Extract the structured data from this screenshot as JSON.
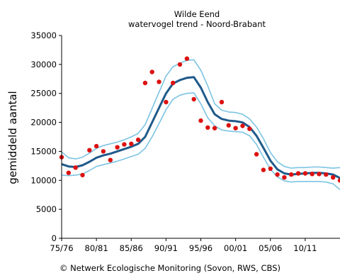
{
  "credit": "© Netwerk Ecologische Monitoring (Sovon, RWS, CBS)",
  "chart_data": {
    "type": "line",
    "title": "Wilde Eend",
    "subtitle": "watervogel trend - Noord-Brabant",
    "ylabel": "gemiddeld aantal",
    "xlabel": "",
    "ylim": [
      0,
      35000
    ],
    "xlim": [
      1975,
      2015
    ],
    "y_ticks": [
      0,
      5000,
      10000,
      15000,
      20000,
      25000,
      30000,
      35000
    ],
    "x_ticks": [
      {
        "value": 1975,
        "label": "75/76"
      },
      {
        "value": 1980,
        "label": "80/81"
      },
      {
        "value": 1985,
        "label": "85/86"
      },
      {
        "value": 1990,
        "label": "90/91"
      },
      {
        "value": 1995,
        "label": "95/96"
      },
      {
        "value": 2000,
        "label": "00/01"
      },
      {
        "value": 2005,
        "label": "05/06"
      },
      {
        "value": 2010,
        "label": "10/11"
      }
    ],
    "grid": false,
    "colors": {
      "trend": "#1f5a8a",
      "band": "#7cc4e4",
      "points": "#dd1111"
    },
    "trend": {
      "x": [
        1975,
        1976,
        1977,
        1978,
        1979,
        1980,
        1981,
        1982,
        1983,
        1984,
        1985,
        1986,
        1987,
        1988,
        1989,
        1990,
        1991,
        1992,
        1993,
        1994,
        1995,
        1996,
        1997,
        1998,
        1999,
        2000,
        2001,
        2002,
        2003,
        2004,
        2005,
        2006,
        2007,
        2008,
        2009,
        2010,
        2011,
        2012,
        2013,
        2014,
        2015
      ],
      "y": [
        12800,
        12400,
        12300,
        12600,
        13200,
        13900,
        14300,
        14600,
        15000,
        15400,
        15800,
        16300,
        17500,
        20000,
        22500,
        25000,
        26700,
        27300,
        27700,
        27800,
        26000,
        23500,
        21400,
        20600,
        20300,
        20200,
        20000,
        19200,
        17700,
        15600,
        13400,
        11900,
        11200,
        11000,
        11100,
        11200,
        11300,
        11300,
        11200,
        11000,
        10400
      ]
    },
    "upper": {
      "x": [
        1975,
        1976,
        1977,
        1978,
        1979,
        1980,
        1981,
        1982,
        1983,
        1984,
        1985,
        1986,
        1987,
        1988,
        1989,
        1990,
        1991,
        1992,
        1993,
        1994,
        1995,
        1996,
        1997,
        1998,
        1999,
        2000,
        2001,
        2002,
        2003,
        2004,
        2005,
        2006,
        2007,
        2008,
        2009,
        2010,
        2011,
        2012,
        2013,
        2014,
        2015
      ],
      "y": [
        14900,
        13900,
        13700,
        14000,
        14700,
        15500,
        16000,
        16300,
        16600,
        17000,
        17500,
        18100,
        19600,
        22400,
        25200,
        28000,
        29600,
        30200,
        30700,
        30800,
        29000,
        26300,
        23200,
        22100,
        21800,
        21700,
        21400,
        20600,
        19200,
        17200,
        14800,
        13200,
        12400,
        12100,
        12200,
        12200,
        12300,
        12300,
        12200,
        12100,
        12200
      ]
    },
    "lower": {
      "x": [
        1975,
        1976,
        1977,
        1978,
        1979,
        1980,
        1981,
        1982,
        1983,
        1984,
        1985,
        1986,
        1987,
        1988,
        1989,
        1990,
        1991,
        1992,
        1993,
        1994,
        1995,
        1996,
        1997,
        1998,
        1999,
        2000,
        2001,
        2002,
        2003,
        2004,
        2005,
        2006,
        2007,
        2008,
        2009,
        2010,
        2011,
        2012,
        2013,
        2014,
        2015
      ],
      "y": [
        10900,
        10800,
        10900,
        11100,
        11700,
        12400,
        12700,
        13000,
        13300,
        13700,
        14100,
        14500,
        15500,
        17500,
        19800,
        22200,
        24000,
        24700,
        25000,
        25100,
        23200,
        20800,
        19400,
        18700,
        18500,
        18400,
        18300,
        17700,
        16200,
        14000,
        11900,
        10600,
        9900,
        9700,
        9800,
        9800,
        9800,
        9800,
        9700,
        9400,
        8400
      ]
    },
    "observations": {
      "x": [
        1975,
        1976,
        1977,
        1978,
        1979,
        1980,
        1981,
        1982,
        1983,
        1984,
        1985,
        1986,
        1987,
        1988,
        1989,
        1990,
        1991,
        1992,
        1993,
        1994,
        1995,
        1996,
        1997,
        1998,
        1999,
        2000,
        2001,
        2002,
        2003,
        2004,
        2005,
        2006,
        2007,
        2008,
        2009,
        2010,
        2011,
        2012,
        2013,
        2014,
        2015
      ],
      "y": [
        14000,
        11300,
        12200,
        10900,
        15200,
        15900,
        15000,
        13500,
        15700,
        16200,
        16300,
        17000,
        26800,
        28700,
        27000,
        23500,
        26800,
        30000,
        31000,
        24000,
        20300,
        19100,
        19000,
        23500,
        19500,
        19000,
        19400,
        18900,
        14500,
        11800,
        12000,
        11000,
        10500,
        11000,
        11200,
        11200,
        11100,
        11100,
        11000,
        10500,
        10000
      ]
    }
  }
}
